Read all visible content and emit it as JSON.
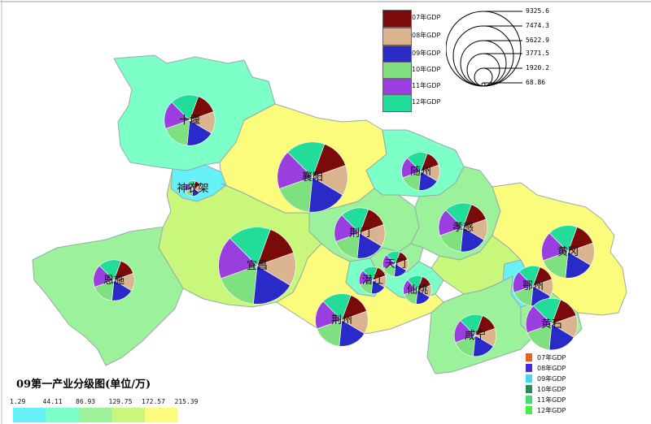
{
  "title": "09第一产业分级图(单位/万)",
  "pie_legend": [
    {
      "label": "07年GDP",
      "color": "#7b0a0a"
    },
    {
      "label": "08年GDP",
      "color": "#d9b48f"
    },
    {
      "label": "09年GDP",
      "color": "#2a2ac8"
    },
    {
      "label": "10年GDP",
      "color": "#7fe07f"
    },
    {
      "label": "11年GDP",
      "color": "#9a3ee0"
    },
    {
      "label": "12年GDP",
      "color": "#22dd99"
    }
  ],
  "size_legend": [
    "9325.6",
    "7474.3",
    "5622.9",
    "3771.5",
    "1920.2",
    "68.86"
  ],
  "bar_legend": [
    {
      "label": "07年GDP",
      "color": "#e8601c"
    },
    {
      "label": "08年GDP",
      "color": "#4a2ad8"
    },
    {
      "label": "09年GDP",
      "color": "#40d8f0"
    },
    {
      "label": "10年GDP",
      "color": "#2a8a5a"
    },
    {
      "label": "11年GDP",
      "color": "#40e070"
    },
    {
      "label": "12年GDP",
      "color": "#44ee44"
    }
  ],
  "class_breaks": [
    "1.29",
    "44.11",
    "86.93",
    "129.75",
    "172.57",
    "215.39"
  ],
  "class_colors": [
    "#66f0f8",
    "#7dffc8",
    "#9cf29a",
    "#c8f77c",
    "#fbfb7c"
  ],
  "cities": [
    {
      "name": "十堰",
      "fill": "#7dffc8",
      "size": 5.2
    },
    {
      "name": "襄阳",
      "fill": "#fbfb7c",
      "size": 7.2
    },
    {
      "name": "随州",
      "fill": "#7dffc8",
      "size": 3.9
    },
    {
      "name": "神农架",
      "fill": "#66f0f8",
      "size": 1.6
    },
    {
      "name": "荆门",
      "fill": "#9cf29a",
      "size": 5.2
    },
    {
      "name": "孝感",
      "fill": "#9cf29a",
      "size": 5.0
    },
    {
      "name": "黄冈",
      "fill": "#fbfb7c",
      "size": 5.4
    },
    {
      "name": "宜昌",
      "fill": "#c8f77c",
      "size": 7.9
    },
    {
      "name": "恩施",
      "fill": "#9cf29a",
      "size": 4.2
    },
    {
      "name": "天门",
      "fill": "#9cf29a",
      "size": 2.6
    },
    {
      "name": "潜江",
      "fill": "#7dffc8",
      "size": 2.8
    },
    {
      "name": "仙桃",
      "fill": "#7dffc8",
      "size": 2.9
    },
    {
      "name": "荆州",
      "fill": "#fbfb7c",
      "size": 5.4
    },
    {
      "name": "鄂州",
      "fill": "#66f0f8",
      "size": 4.1
    },
    {
      "name": "黄石",
      "fill": "#9cf29a",
      "size": 5.3
    },
    {
      "name": "咸宁",
      "fill": "#9cf29a",
      "size": 4.3
    },
    {
      "name": "武汉",
      "fill": "#c8f77c",
      "size": 0
    }
  ],
  "pie_shares": [
    0.14,
    0.14,
    0.18,
    0.18,
    0.18,
    0.18
  ]
}
